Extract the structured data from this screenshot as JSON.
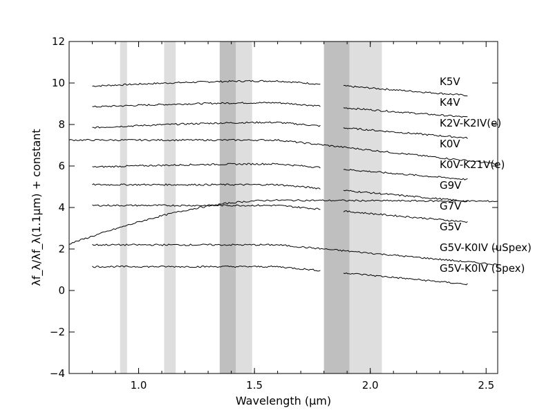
{
  "chart_data": {
    "type": "line",
    "xlabel": "Wavelength (μm)",
    "ylabel": "λf_λ/λf_λ(1.1μm) + constant",
    "xlim": [
      0.7,
      2.55
    ],
    "ylim": [
      -4,
      12
    ],
    "x_ticks": [
      "1.0",
      "1.5",
      "2.0",
      "2.5"
    ],
    "y_ticks": [
      "−4",
      "−2",
      "0",
      "2",
      "4",
      "6",
      "8",
      "10",
      "12"
    ],
    "grid": false,
    "shaded_bands": [
      {
        "x0": 0.92,
        "x1": 0.95,
        "shade": "light"
      },
      {
        "x0": 1.11,
        "x1": 1.16,
        "shade": "light"
      },
      {
        "x0": 1.35,
        "x1": 1.42,
        "shade": "dark"
      },
      {
        "x0": 1.42,
        "x1": 1.49,
        "shade": "light"
      },
      {
        "x0": 1.8,
        "x1": 1.91,
        "shade": "dark"
      },
      {
        "x0": 1.91,
        "x1": 2.05,
        "shade": "light"
      }
    ],
    "series": [
      {
        "name": "K5V",
        "x_start": 0.8,
        "x_end": 2.42,
        "y_start": 9.85,
        "y_peak": 10.1,
        "y_end": 9.4
      },
      {
        "name": "K4V",
        "x_start": 0.8,
        "x_end": 2.42,
        "y_start": 8.85,
        "y_peak": 9.05,
        "y_end": 8.35
      },
      {
        "name": "K2V-K2IV(e)",
        "x_start": 0.8,
        "x_end": 2.42,
        "y_start": 7.85,
        "y_peak": 8.1,
        "y_end": 7.35
      },
      {
        "name": "K0V",
        "x_start": 0.7,
        "x_end": 2.55,
        "y_start": 7.25,
        "y_peak": 7.25,
        "y_end": 6.1
      },
      {
        "name": "K0V-K21V(e)",
        "x_start": 0.8,
        "x_end": 2.42,
        "y_start": 5.95,
        "y_peak": 6.1,
        "y_end": 5.35
      },
      {
        "name": "G9V",
        "x_start": 0.8,
        "x_end": 2.42,
        "y_start": 5.1,
        "y_peak": 5.1,
        "y_end": 4.3
      },
      {
        "name": "G7V",
        "x_start": 0.8,
        "x_end": 2.42,
        "y_start": 4.1,
        "y_peak": 4.1,
        "y_end": 3.3
      },
      {
        "name": "G5V",
        "x_start": 0.7,
        "x_end": 2.55,
        "y_start": 2.25,
        "y_peak": 4.35,
        "y_end": 4.3
      },
      {
        "name": "G5V-K0IV (uSpex)",
        "x_start": 0.8,
        "x_end": 2.55,
        "y_start": 2.2,
        "y_peak": 2.2,
        "y_end": 1.25
      },
      {
        "name": "G5V-K0IV (Spex)",
        "x_start": 0.8,
        "x_end": 2.42,
        "y_start": 1.15,
        "y_peak": 1.15,
        "y_end": 0.3
      }
    ]
  }
}
